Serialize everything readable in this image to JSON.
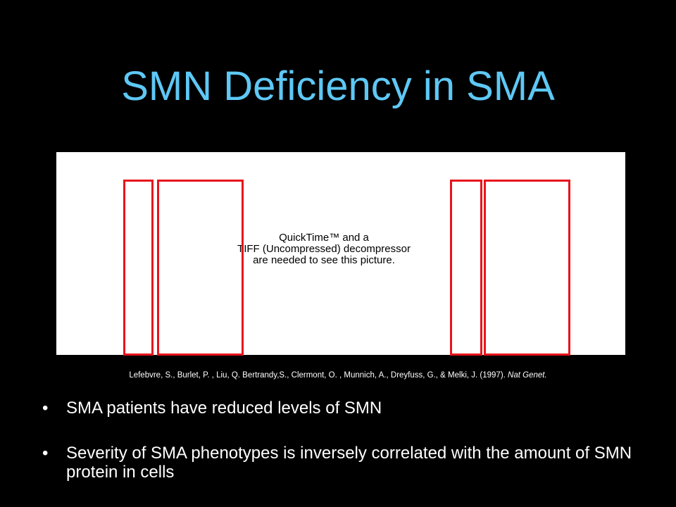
{
  "slide": {
    "title": "SMN Deficiency in SMA",
    "figure": {
      "placeholder_lines": [
        "QuickTime™ and a",
        "TIFF (Uncompressed) decompressor",
        "are needed to see this picture."
      ],
      "highlight_color": "#e8141c"
    },
    "citation": {
      "text": "Lefebvre, S., Burlet, P. , Liu, Q. Bertrandy,S., Clermont, O. , Munnich, A., Dreyfuss, G., & Melki, J.  (1997).",
      "journal": "Nat Genet."
    },
    "bullets": [
      {
        "marker": "•",
        "text": "SMA patients have reduced levels of SMN"
      },
      {
        "marker": "•",
        "text": "Severity of SMA phenotypes is inversely correlated with the amount of SMN protein in cells"
      }
    ],
    "colors": {
      "background": "#000000",
      "title": "#5ec8f5",
      "body_text": "#ffffff"
    }
  }
}
